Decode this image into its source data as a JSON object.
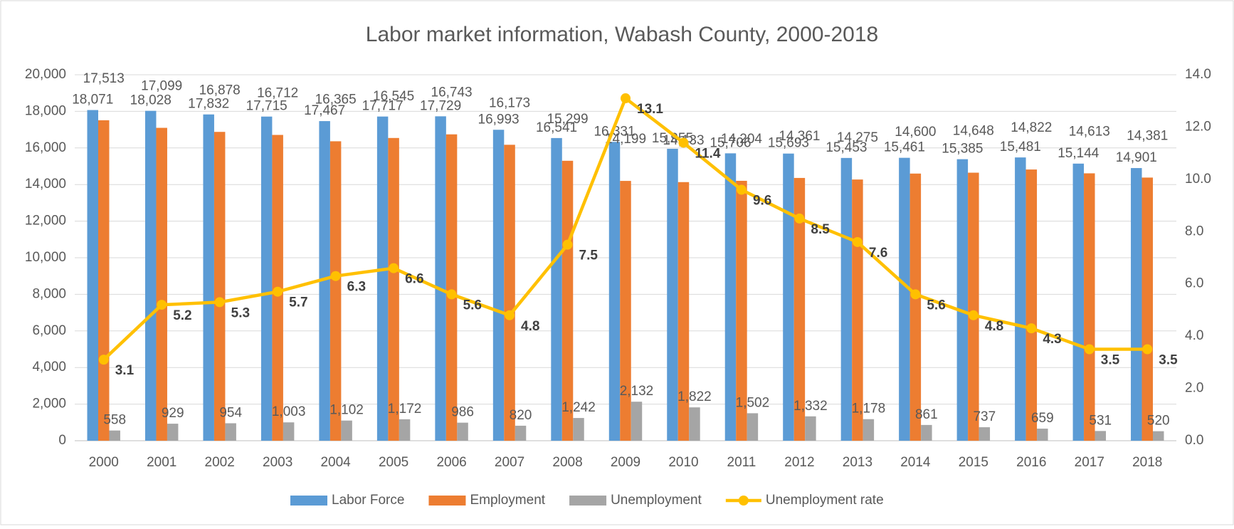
{
  "chart_data": {
    "type": "bar-line",
    "title": "Labor market information, Wabash County, 2000-2018",
    "categories": [
      "2000",
      "2001",
      "2002",
      "2003",
      "2004",
      "2005",
      "2006",
      "2007",
      "2008",
      "2009",
      "2010",
      "2011",
      "2012",
      "2013",
      "2014",
      "2015",
      "2016",
      "2017",
      "2018"
    ],
    "series": [
      {
        "name": "Labor Force",
        "type": "bar",
        "color": "#5b9bd5",
        "values": [
          18071,
          18028,
          17832,
          17715,
          17467,
          17717,
          17729,
          16993,
          16541,
          16331,
          15955,
          15706,
          15693,
          15453,
          15461,
          15385,
          15481,
          15144,
          14901
        ],
        "value_labels": [
          "18,071",
          "18,028",
          "17,832",
          "17,715",
          "17,467",
          "17,717",
          "17,729",
          "16,993",
          "16,541",
          "16,331",
          "15,955",
          "15,706",
          "15,693",
          "15,453",
          "15,461",
          "15,385",
          "15,481",
          "15,144",
          "14,901"
        ]
      },
      {
        "name": "Employment",
        "type": "bar",
        "color": "#ed7d31",
        "values": [
          17513,
          17099,
          16878,
          16712,
          16365,
          16545,
          16743,
          16173,
          15299,
          14199,
          14133,
          14204,
          14361,
          14275,
          14600,
          14648,
          14822,
          14613,
          14381
        ],
        "value_labels": [
          "17,513",
          "17,099",
          "16,878",
          "16,712",
          "16,365",
          "16,545",
          "16,743",
          "16,173",
          "15,299",
          "14,199",
          "14,133",
          "14,204",
          "14,361",
          "14,275",
          "14,600",
          "14,648",
          "14,822",
          "14,613",
          "14,381"
        ]
      },
      {
        "name": "Unemployment",
        "type": "bar",
        "color": "#a5a5a5",
        "values": [
          558,
          929,
          954,
          1003,
          1102,
          1172,
          986,
          820,
          1242,
          2132,
          1822,
          1502,
          1332,
          1178,
          861,
          737,
          659,
          531,
          520
        ],
        "value_labels": [
          "558",
          "929",
          "954",
          "1,003",
          "1,102",
          "1,172",
          "986",
          "820",
          "1,242",
          "2,132",
          "1,822",
          "1,502",
          "1,332",
          "1,178",
          "861",
          "737",
          "659",
          "531",
          "520"
        ]
      },
      {
        "name": "Unemployment rate",
        "type": "line",
        "axis": "y2",
        "color": "#ffc000",
        "values": [
          3.1,
          5.2,
          5.3,
          5.7,
          6.3,
          6.6,
          5.6,
          4.8,
          7.5,
          13.1,
          11.4,
          9.6,
          8.5,
          7.6,
          5.6,
          4.8,
          4.3,
          3.5,
          3.5
        ]
      }
    ],
    "ylim": [
      0,
      20000
    ],
    "yticks": [
      0,
      {
        "value": 2000,
        "label": "2,000"
      },
      {
        "value": 4000,
        "label": "4,000"
      },
      {
        "value": 6000,
        "label": "6,000"
      },
      {
        "value": 8000,
        "label": "8,000"
      },
      {
        "value": 10000,
        "label": "10,000"
      },
      {
        "value": 12000,
        "label": "12,000"
      },
      {
        "value": 14000,
        "label": "14,000"
      },
      {
        "value": 16000,
        "label": "16,000"
      },
      {
        "value": 18000,
        "label": "18,000"
      },
      {
        "value": 20000,
        "label": "20,000"
      }
    ],
    "y2lim": [
      0,
      14
    ],
    "y2ticks": [
      {
        "value": 0,
        "label": "0.0"
      },
      {
        "value": 2,
        "label": "2.0"
      },
      {
        "value": 4,
        "label": "4.0"
      },
      {
        "value": 6,
        "label": "6.0"
      },
      {
        "value": 8,
        "label": "8.0"
      },
      {
        "value": 10,
        "label": "10.0"
      },
      {
        "value": 12,
        "label": "12.0"
      },
      {
        "value": 14,
        "label": "14.0"
      }
    ],
    "grid": true,
    "legend": "bottom"
  }
}
